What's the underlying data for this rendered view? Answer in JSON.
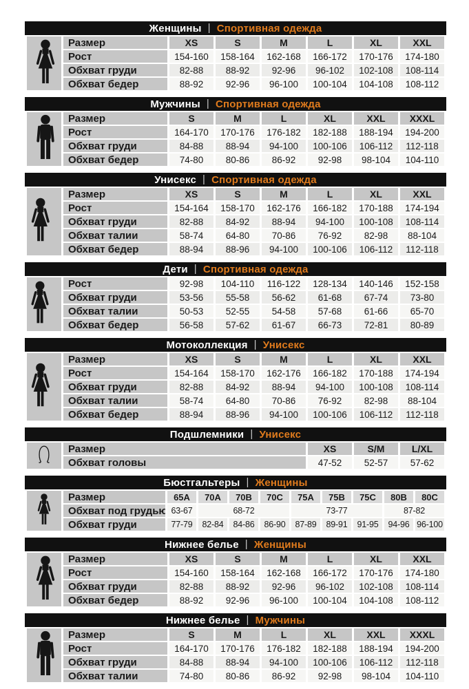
{
  "ui": {
    "separator": "|"
  },
  "colors": {
    "header_bar": "#111111",
    "header_text": "#ffffff",
    "accent_orange": "#e07b1d",
    "panel_gray": "#c6c6c6",
    "row_light": "#f6f6f4",
    "row_alt": "#ececea",
    "text": "#1a1a1a"
  },
  "sections": [
    {
      "title": "Женщины",
      "subtitle": "Спортивная одежда",
      "icon": "woman-icon",
      "rows": [
        {
          "label": "Размер",
          "header": true,
          "cells": [
            "XS",
            "S",
            "M",
            "L",
            "XL",
            "XXL"
          ]
        },
        {
          "label": "Рост",
          "cells": [
            "154-160",
            "158-164",
            "162-168",
            "166-172",
            "170-176",
            "174-180"
          ]
        },
        {
          "label": "Обхват груди",
          "cells": [
            "82-88",
            "88-92",
            "92-96",
            "96-102",
            "102-108",
            "108-114"
          ]
        },
        {
          "label": "Обхват бедер",
          "cells": [
            "88-92",
            "92-96",
            "96-100",
            "100-104",
            "104-108",
            "108-112"
          ]
        }
      ]
    },
    {
      "title": "Мужчины",
      "subtitle": "Спортивная одежда",
      "icon": "man-icon",
      "rows": [
        {
          "label": "Размер",
          "header": true,
          "cells": [
            "S",
            "M",
            "L",
            "XL",
            "XXL",
            "XXXL"
          ]
        },
        {
          "label": "Рост",
          "cells": [
            "164-170",
            "170-176",
            "176-182",
            "182-188",
            "188-194",
            "194-200"
          ]
        },
        {
          "label": "Обхват груди",
          "cells": [
            "84-88",
            "88-94",
            "94-100",
            "100-106",
            "106-112",
            "112-118"
          ]
        },
        {
          "label": "Обхват бедер",
          "cells": [
            "74-80",
            "80-86",
            "86-92",
            "92-98",
            "98-104",
            "104-110"
          ]
        }
      ]
    },
    {
      "title": "Унисекс",
      "subtitle": "Спортивная одежда",
      "icon": "woman-man-icon",
      "rows": [
        {
          "label": "Размер",
          "header": true,
          "cells": [
            "XS",
            "S",
            "M",
            "L",
            "XL",
            "XXL"
          ]
        },
        {
          "label": "Рост",
          "cells": [
            "154-164",
            "158-170",
            "162-176",
            "166-182",
            "170-188",
            "174-194"
          ]
        },
        {
          "label": "Обхват груди",
          "cells": [
            "82-88",
            "84-92",
            "88-94",
            "94-100",
            "100-108",
            "108-114"
          ]
        },
        {
          "label": "Обхват талии",
          "cells": [
            "58-74",
            "64-80",
            "70-86",
            "76-92",
            "82-98",
            "88-104"
          ]
        },
        {
          "label": "Обхват бедер",
          "cells": [
            "88-94",
            "88-96",
            "94-100",
            "100-106",
            "106-112",
            "112-118"
          ]
        }
      ]
    },
    {
      "title": "Дети",
      "subtitle": "Спортивная одежда",
      "icon": "woman-man-icon",
      "rows": [
        {
          "label": "Рост",
          "cells": [
            "92-98",
            "104-110",
            "116-122",
            "128-134",
            "140-146",
            "152-158"
          ]
        },
        {
          "label": "Обхват груди",
          "cells": [
            "53-56",
            "55-58",
            "56-62",
            "61-68",
            "67-74",
            "73-80"
          ]
        },
        {
          "label": "Обхват талии",
          "cells": [
            "50-53",
            "52-55",
            "54-58",
            "57-68",
            "61-66",
            "65-70"
          ]
        },
        {
          "label": "Обхват бедер",
          "cells": [
            "56-58",
            "57-62",
            "61-67",
            "66-73",
            "72-81",
            "80-89"
          ]
        }
      ]
    },
    {
      "title": "Мотоколлекция",
      "subtitle": "Унисекс",
      "icon": "woman-man-icon",
      "rows": [
        {
          "label": "Размер",
          "header": true,
          "cells": [
            "XS",
            "S",
            "M",
            "L",
            "XL",
            "XXL"
          ]
        },
        {
          "label": "Рост",
          "cells": [
            "154-164",
            "158-170",
            "162-176",
            "166-182",
            "170-188",
            "174-194"
          ]
        },
        {
          "label": "Обхват груди",
          "cells": [
            "82-88",
            "84-92",
            "88-94",
            "94-100",
            "100-108",
            "108-114"
          ]
        },
        {
          "label": "Обхват талии",
          "cells": [
            "58-74",
            "64-80",
            "70-86",
            "76-92",
            "82-98",
            "88-104"
          ]
        },
        {
          "label": "Обхват бедер",
          "cells": [
            "88-94",
            "88-96",
            "94-100",
            "100-106",
            "106-112",
            "112-118"
          ]
        }
      ]
    },
    {
      "title": "Подшлемники",
      "subtitle": "Унисекс",
      "icon": "balaclava-icon",
      "rows": [
        {
          "label": "Размер",
          "header": true,
          "cells": [
            "XS",
            "S/M",
            "L/XL"
          ]
        },
        {
          "label": "Обхват головы",
          "cells": [
            "47-52",
            "52-57",
            "57-62"
          ]
        }
      ]
    },
    {
      "title": "Бюстгальтеры",
      "subtitle": "Женщины",
      "icon": "woman-icon",
      "rows": [
        {
          "label": "Размер",
          "header": true,
          "cells": [
            "65A",
            "70A",
            "70B",
            "70C",
            "75A",
            "75B",
            "75C",
            "80B",
            "80C"
          ]
        },
        {
          "label": "Обхват под грудью",
          "cells": [
            {
              "t": "63-67",
              "span": 1
            },
            {
              "t": "68-72",
              "span": 3
            },
            {
              "t": "73-77",
              "span": 3
            },
            {
              "t": "87-82",
              "span": 2
            }
          ]
        },
        {
          "label": "Обхват груди",
          "cells": [
            "77-79",
            "82-84",
            "84-86",
            "86-90",
            "87-89",
            "89-91",
            "91-95",
            "94-96",
            "96-100"
          ]
        }
      ]
    },
    {
      "title": "Нижнее белье",
      "subtitle": "Женщины",
      "icon": "woman-icon",
      "rows": [
        {
          "label": "Размер",
          "header": true,
          "cells": [
            "XS",
            "S",
            "M",
            "L",
            "XL",
            "XXL"
          ]
        },
        {
          "label": "Рост",
          "cells": [
            "154-160",
            "158-164",
            "162-168",
            "166-172",
            "170-176",
            "174-180"
          ]
        },
        {
          "label": "Обхват груди",
          "cells": [
            "82-88",
            "88-92",
            "92-96",
            "96-102",
            "102-108",
            "108-114"
          ]
        },
        {
          "label": "Обхват бедер",
          "cells": [
            "88-92",
            "92-96",
            "96-100",
            "100-104",
            "104-108",
            "108-112"
          ]
        }
      ]
    },
    {
      "title": "Нижнее белье",
      "subtitle": "Мужчины",
      "icon": "man-icon",
      "rows": [
        {
          "label": "Размер",
          "header": true,
          "cells": [
            "S",
            "M",
            "L",
            "XL",
            "XXL",
            "XXXL"
          ]
        },
        {
          "label": "Рост",
          "cells": [
            "164-170",
            "170-176",
            "176-182",
            "182-188",
            "188-194",
            "194-200"
          ]
        },
        {
          "label": "Обхват груди",
          "cells": [
            "84-88",
            "88-94",
            "94-100",
            "100-106",
            "106-112",
            "112-118"
          ]
        },
        {
          "label": "Обхват талии",
          "cells": [
            "74-80",
            "80-86",
            "86-92",
            "92-98",
            "98-104",
            "104-110"
          ]
        }
      ]
    }
  ]
}
